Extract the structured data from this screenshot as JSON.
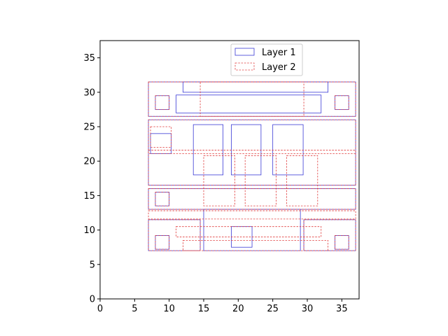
{
  "chart_data": {
    "type": "layout-rectangles",
    "title": "",
    "xlabel": "",
    "ylabel": "",
    "xlim": [
      0,
      37.5
    ],
    "ylim": [
      0,
      37.5
    ],
    "xticks": [
      0,
      5,
      10,
      15,
      20,
      25,
      30,
      35
    ],
    "yticks": [
      0,
      5,
      10,
      15,
      20,
      25,
      30,
      35
    ],
    "grid": false,
    "legend_position": "top-center",
    "series": [
      {
        "name": "Layer 1",
        "color": "#3a3ad6",
        "line_style": "solid",
        "rects": [
          {
            "x0": 7,
            "y0": 26.5,
            "x1": 37,
            "y1": 31.5
          },
          {
            "x0": 12,
            "y0": 30,
            "x1": 33,
            "y1": 31.5
          },
          {
            "x0": 11,
            "y0": 27,
            "x1": 32,
            "y1": 29.6
          },
          {
            "x0": 8,
            "y0": 27.5,
            "x1": 10,
            "y1": 29.5
          },
          {
            "x0": 34,
            "y0": 27.5,
            "x1": 36,
            "y1": 29.5
          },
          {
            "x0": 7,
            "y0": 16.5,
            "x1": 37,
            "y1": 26
          },
          {
            "x0": 7.3,
            "y0": 21.1,
            "x1": 10.3,
            "y1": 24
          },
          {
            "x0": 13.5,
            "y0": 18,
            "x1": 17.8,
            "y1": 25.3
          },
          {
            "x0": 19,
            "y0": 18,
            "x1": 23.3,
            "y1": 25.3
          },
          {
            "x0": 25,
            "y0": 18,
            "x1": 29.4,
            "y1": 25.3
          },
          {
            "x0": 7,
            "y0": 13,
            "x1": 37,
            "y1": 16
          },
          {
            "x0": 8,
            "y0": 13.5,
            "x1": 10,
            "y1": 15.5
          },
          {
            "x0": 7,
            "y0": 7,
            "x1": 14.5,
            "y1": 11.5
          },
          {
            "x0": 15,
            "y0": 7,
            "x1": 29,
            "y1": 13
          },
          {
            "x0": 29.5,
            "y0": 7,
            "x1": 37,
            "y1": 11.5
          },
          {
            "x0": 19,
            "y0": 7.5,
            "x1": 22,
            "y1": 10.5
          },
          {
            "x0": 8,
            "y0": 7.2,
            "x1": 10,
            "y1": 9.2
          },
          {
            "x0": 34,
            "y0": 7.2,
            "x1": 36,
            "y1": 9.2
          }
        ]
      },
      {
        "name": "Layer 2",
        "color": "#e03c3c",
        "line_style": "dashed",
        "rects": [
          {
            "x0": 7,
            "y0": 26.5,
            "x1": 37,
            "y1": 31.5
          },
          {
            "x0": 14.5,
            "y0": 26.5,
            "x1": 29.5,
            "y1": 31.5
          },
          {
            "x0": 8,
            "y0": 27.5,
            "x1": 10,
            "y1": 29.5
          },
          {
            "x0": 34,
            "y0": 27.5,
            "x1": 36,
            "y1": 29.5
          },
          {
            "x0": 7,
            "y0": 16.5,
            "x1": 37,
            "y1": 26
          },
          {
            "x0": 7,
            "y0": 21.1,
            "x1": 37,
            "y1": 21.6
          },
          {
            "x0": 7.3,
            "y0": 22,
            "x1": 10.3,
            "y1": 25
          },
          {
            "x0": 15,
            "y0": 13.5,
            "x1": 19.5,
            "y1": 20.8
          },
          {
            "x0": 21,
            "y0": 13.5,
            "x1": 25.5,
            "y1": 20.8
          },
          {
            "x0": 27,
            "y0": 13.5,
            "x1": 31.5,
            "y1": 20.8
          },
          {
            "x0": 7,
            "y0": 13,
            "x1": 37,
            "y1": 16
          },
          {
            "x0": 8,
            "y0": 13.5,
            "x1": 10,
            "y1": 15.5
          },
          {
            "x0": 7,
            "y0": 11.6,
            "x1": 37,
            "y1": 12.8
          },
          {
            "x0": 11,
            "y0": 9,
            "x1": 32,
            "y1": 10.5
          },
          {
            "x0": 12,
            "y0": 7,
            "x1": 33,
            "y1": 8.5
          },
          {
            "x0": 7,
            "y0": 7,
            "x1": 14.5,
            "y1": 11.5
          },
          {
            "x0": 29.5,
            "y0": 7,
            "x1": 37,
            "y1": 11.5
          },
          {
            "x0": 8,
            "y0": 7.2,
            "x1": 10,
            "y1": 9.2
          },
          {
            "x0": 34,
            "y0": 7.2,
            "x1": 36,
            "y1": 9.2
          }
        ]
      }
    ]
  }
}
